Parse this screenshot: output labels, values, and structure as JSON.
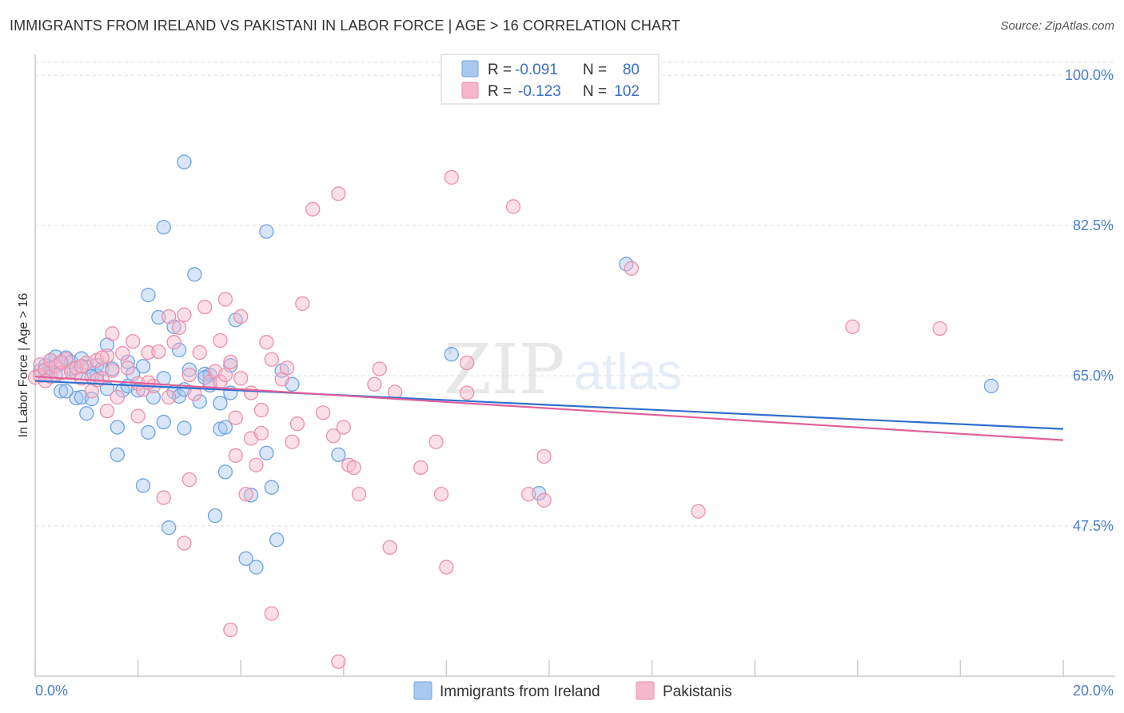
{
  "title": "IMMIGRANTS FROM IRELAND VS PAKISTANI IN LABOR FORCE | AGE > 16 CORRELATION CHART",
  "source": "Source: ZipAtlas.com",
  "watermark": {
    "zip": "ZIP",
    "atlas": "atlas"
  },
  "legend": {
    "rows": [
      {
        "r_label": "R =",
        "r_value": "-0.091",
        "n_label": "N =",
        "n_value": "80",
        "color": "#a9c8f0"
      },
      {
        "r_label": "R =",
        "r_value": "-0.123",
        "n_label": "N =",
        "n_value": "102",
        "color": "#f6b8cb"
      }
    ]
  },
  "bottom_legend": [
    {
      "label": "Immigrants from Ireland",
      "color": "#a9c8f0"
    },
    {
      "label": "Pakistanis",
      "color": "#f6b8cb"
    }
  ],
  "chart_data": {
    "type": "scatter",
    "title": "IMMIGRANTS FROM IRELAND VS PAKISTANI IN LABOR FORCE | AGE > 16 CORRELATION CHART",
    "xlabel": "",
    "ylabel": "In Labor Force | Age > 16",
    "xlim": [
      0,
      20
    ],
    "ylim": [
      30,
      101.5
    ],
    "x_tick_labels": [
      "0.0%",
      "20.0%"
    ],
    "y_ticks": [
      47.5,
      65.0,
      82.5,
      100.0
    ],
    "y_tick_labels": [
      "47.5%",
      "65.0%",
      "82.5%",
      "100.0%"
    ],
    "grid": true,
    "legend_position": "top-center",
    "series": [
      {
        "name": "Immigrants from Ireland",
        "color": "#6fa3e0",
        "fill": "#a9c8f0",
        "trend_color": "#2f6fcf",
        "trend": {
          "x": [
            0,
            20
          ],
          "y": [
            64.4,
            58.8
          ]
        },
        "points": [
          [
            0.1,
            65.6
          ],
          [
            0.2,
            66.2
          ],
          [
            0.2,
            65.2
          ],
          [
            0.3,
            66.8
          ],
          [
            0.3,
            65.9
          ],
          [
            0.4,
            67.2
          ],
          [
            0.4,
            65.1
          ],
          [
            0.5,
            63.2
          ],
          [
            0.5,
            66.4
          ],
          [
            0.6,
            67.1
          ],
          [
            0.7,
            65.8
          ],
          [
            0.7,
            66.6
          ],
          [
            0.8,
            65.3
          ],
          [
            0.8,
            62.4
          ],
          [
            0.9,
            67.0
          ],
          [
            0.9,
            62.5
          ],
          [
            1.0,
            66.0
          ],
          [
            1.0,
            60.6
          ],
          [
            1.1,
            62.3
          ],
          [
            1.2,
            66.2
          ],
          [
            1.2,
            65.0
          ],
          [
            1.3,
            65.8
          ],
          [
            1.4,
            68.6
          ],
          [
            1.4,
            63.5
          ],
          [
            1.5,
            65.8
          ],
          [
            1.6,
            59.0
          ],
          [
            1.6,
            55.8
          ],
          [
            1.7,
            63.3
          ],
          [
            1.8,
            63.8
          ],
          [
            1.8,
            66.6
          ],
          [
            1.9,
            65.2
          ],
          [
            2.0,
            63.3
          ],
          [
            2.1,
            66.1
          ],
          [
            2.1,
            52.2
          ],
          [
            2.2,
            74.4
          ],
          [
            2.2,
            58.4
          ],
          [
            2.3,
            62.5
          ],
          [
            2.4,
            71.8
          ],
          [
            2.5,
            64.7
          ],
          [
            2.5,
            59.6
          ],
          [
            2.5,
            82.3
          ],
          [
            2.6,
            47.3
          ],
          [
            2.7,
            63.1
          ],
          [
            2.7,
            70.7
          ],
          [
            2.8,
            68.0
          ],
          [
            2.8,
            62.6
          ],
          [
            2.9,
            58.9
          ],
          [
            2.9,
            89.9
          ],
          [
            3.0,
            65.7
          ],
          [
            3.1,
            76.8
          ],
          [
            3.2,
            62.0
          ],
          [
            3.3,
            65.2
          ],
          [
            3.4,
            65.1
          ],
          [
            3.4,
            63.9
          ],
          [
            3.5,
            48.7
          ],
          [
            3.6,
            61.8
          ],
          [
            3.6,
            58.8
          ],
          [
            3.7,
            59.0
          ],
          [
            3.7,
            53.8
          ],
          [
            3.8,
            63.0
          ],
          [
            3.8,
            66.2
          ],
          [
            3.9,
            71.5
          ],
          [
            4.1,
            43.7
          ],
          [
            4.2,
            51.1
          ],
          [
            4.3,
            42.7
          ],
          [
            4.5,
            81.8
          ],
          [
            4.5,
            56.0
          ],
          [
            4.6,
            52.0
          ],
          [
            4.7,
            45.9
          ],
          [
            4.8,
            65.6
          ],
          [
            5.0,
            64.0
          ],
          [
            5.9,
            55.8
          ],
          [
            8.1,
            67.5
          ],
          [
            9.8,
            51.3
          ],
          [
            11.5,
            78.0
          ],
          [
            18.6,
            63.8
          ],
          [
            0.6,
            63.2
          ],
          [
            1.1,
            64.9
          ],
          [
            2.9,
            63.4
          ],
          [
            3.3,
            64.8
          ]
        ]
      },
      {
        "name": "Pakistanis",
        "color": "#eb8fae",
        "fill": "#f6b8cb",
        "trend_color": "#e0609a",
        "trend": {
          "x": [
            0,
            20
          ],
          "y": [
            64.9,
            57.5
          ]
        },
        "points": [
          [
            0.0,
            64.8
          ],
          [
            0.1,
            66.3
          ],
          [
            0.1,
            65.0
          ],
          [
            0.2,
            65.7
          ],
          [
            0.3,
            66.8
          ],
          [
            0.3,
            64.9
          ],
          [
            0.4,
            66.1
          ],
          [
            0.5,
            65.3
          ],
          [
            0.6,
            66.9
          ],
          [
            0.7,
            65.5
          ],
          [
            0.8,
            65.9
          ],
          [
            0.9,
            64.7
          ],
          [
            1.0,
            66.5
          ],
          [
            1.1,
            63.2
          ],
          [
            1.2,
            66.8
          ],
          [
            1.3,
            64.7
          ],
          [
            1.4,
            60.9
          ],
          [
            1.4,
            67.3
          ],
          [
            1.5,
            69.9
          ],
          [
            1.5,
            65.6
          ],
          [
            1.6,
            62.5
          ],
          [
            1.7,
            67.6
          ],
          [
            1.8,
            65.9
          ],
          [
            1.9,
            69.0
          ],
          [
            2.0,
            64.1
          ],
          [
            2.0,
            60.3
          ],
          [
            2.1,
            63.4
          ],
          [
            2.2,
            67.7
          ],
          [
            2.3,
            63.8
          ],
          [
            2.4,
            67.8
          ],
          [
            2.5,
            50.8
          ],
          [
            2.6,
            71.9
          ],
          [
            2.6,
            62.5
          ],
          [
            2.7,
            68.9
          ],
          [
            2.8,
            70.6
          ],
          [
            2.9,
            72.1
          ],
          [
            2.9,
            45.5
          ],
          [
            3.0,
            52.9
          ],
          [
            3.0,
            65.1
          ],
          [
            3.1,
            62.9
          ],
          [
            3.2,
            67.7
          ],
          [
            3.3,
            73.0
          ],
          [
            3.4,
            64.3
          ],
          [
            3.5,
            65.5
          ],
          [
            3.6,
            69.1
          ],
          [
            3.6,
            64.3
          ],
          [
            3.7,
            65.1
          ],
          [
            3.7,
            73.9
          ],
          [
            3.8,
            66.6
          ],
          [
            3.9,
            60.1
          ],
          [
            3.9,
            55.7
          ],
          [
            4.0,
            71.9
          ],
          [
            4.0,
            64.7
          ],
          [
            4.1,
            51.2
          ],
          [
            4.2,
            57.7
          ],
          [
            4.3,
            54.6
          ],
          [
            4.4,
            58.3
          ],
          [
            4.4,
            61.0
          ],
          [
            4.5,
            68.9
          ],
          [
            4.6,
            66.9
          ],
          [
            4.6,
            37.3
          ],
          [
            4.8,
            64.6
          ],
          [
            4.9,
            65.9
          ],
          [
            5.0,
            57.3
          ],
          [
            5.1,
            59.4
          ],
          [
            5.2,
            73.4
          ],
          [
            5.4,
            84.4
          ],
          [
            5.6,
            60.7
          ],
          [
            5.8,
            58.0
          ],
          [
            5.9,
            86.2
          ],
          [
            6.0,
            59.0
          ],
          [
            6.1,
            54.6
          ],
          [
            6.2,
            54.3
          ],
          [
            6.3,
            51.2
          ],
          [
            6.7,
            65.8
          ],
          [
            6.9,
            45.0
          ],
          [
            7.0,
            63.1
          ],
          [
            7.5,
            54.3
          ],
          [
            7.8,
            57.3
          ],
          [
            7.9,
            51.2
          ],
          [
            8.0,
            42.7
          ],
          [
            8.1,
            88.1
          ],
          [
            8.4,
            66.5
          ],
          [
            9.3,
            84.7
          ],
          [
            9.6,
            51.2
          ],
          [
            9.9,
            55.6
          ],
          [
            9.9,
            50.5
          ],
          [
            11.6,
            77.5
          ],
          [
            12.9,
            49.2
          ],
          [
            15.9,
            70.7
          ],
          [
            17.6,
            70.5
          ],
          [
            0.5,
            66.6
          ],
          [
            1.3,
            67.1
          ],
          [
            2.2,
            64.2
          ],
          [
            3.8,
            35.4
          ],
          [
            5.9,
            31.7
          ],
          [
            8.4,
            63.0
          ],
          [
            6.6,
            64.0
          ],
          [
            1.2,
            64.5
          ],
          [
            0.9,
            66.1
          ],
          [
            4.2,
            63.0
          ],
          [
            0.2,
            64.4
          ]
        ]
      }
    ]
  }
}
